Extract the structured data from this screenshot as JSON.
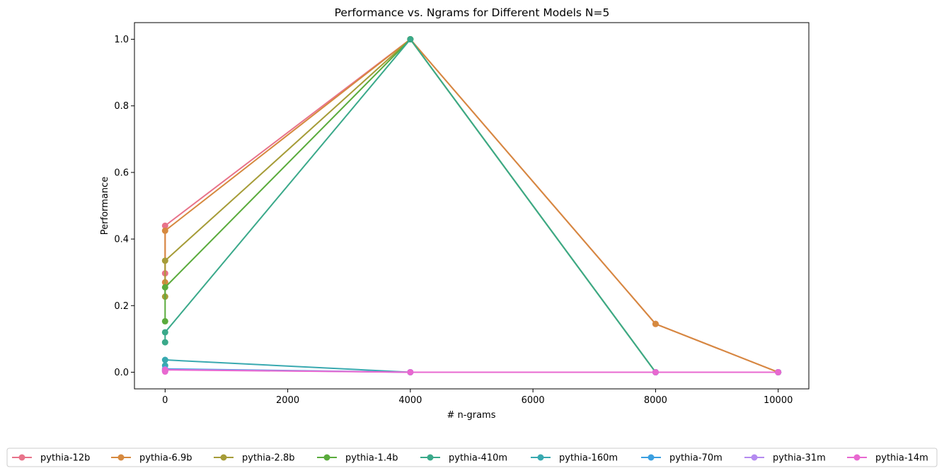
{
  "chart_data": {
    "type": "line",
    "title": "Performance vs. Ngrams for Different Models N=5",
    "xlabel": "# n-grams",
    "ylabel": "Performance",
    "xlim": [
      -500,
      10500
    ],
    "ylim": [
      -0.05,
      1.05
    ],
    "xticks": [
      0,
      2000,
      4000,
      6000,
      8000,
      10000
    ],
    "xtick_labels": [
      "0",
      "2000",
      "4000",
      "6000",
      "8000",
      "10000"
    ],
    "yticks": [
      0.0,
      0.2,
      0.4,
      0.6,
      0.8,
      1.0
    ],
    "ytick_labels": [
      "0.0",
      "0.2",
      "0.4",
      "0.6",
      "0.8",
      "1.0"
    ],
    "grid": false,
    "legend_position": "bottom",
    "series": [
      {
        "name": "pythia-12b",
        "color": "#e8738a",
        "points": [
          [
            0,
            0.297
          ],
          [
            0,
            0.44
          ],
          [
            4000,
            1.0
          ],
          [
            8000,
            0.145
          ],
          [
            10000,
            0.0
          ]
        ]
      },
      {
        "name": "pythia-6.9b",
        "color": "#d6893f",
        "points": [
          [
            0,
            0.27
          ],
          [
            0,
            0.425
          ],
          [
            4000,
            1.0
          ],
          [
            8000,
            0.145
          ],
          [
            10000,
            0.0
          ]
        ]
      },
      {
        "name": "pythia-2.8b",
        "color": "#a69c38",
        "points": [
          [
            0,
            0.227
          ],
          [
            0,
            0.335
          ],
          [
            4000,
            1.0
          ],
          [
            8000,
            0.0
          ],
          [
            10000,
            0.0
          ]
        ]
      },
      {
        "name": "pythia-1.4b",
        "color": "#5aab3c",
        "points": [
          [
            0,
            0.153
          ],
          [
            0,
            0.255
          ],
          [
            4000,
            1.0
          ],
          [
            8000,
            0.0
          ],
          [
            10000,
            0.0
          ]
        ]
      },
      {
        "name": "pythia-410m",
        "color": "#3aa98a",
        "points": [
          [
            0,
            0.09
          ],
          [
            0,
            0.12
          ],
          [
            4000,
            1.0
          ],
          [
            8000,
            0.0
          ],
          [
            10000,
            0.0
          ]
        ]
      },
      {
        "name": "pythia-160m",
        "color": "#38a9b0",
        "points": [
          [
            0,
            0.02
          ],
          [
            0,
            0.037
          ],
          [
            4000,
            0.0
          ],
          [
            8000,
            0.0
          ],
          [
            10000,
            0.0
          ]
        ]
      },
      {
        "name": "pythia-70m",
        "color": "#3a9fe0",
        "points": [
          [
            0,
            0.005
          ],
          [
            0,
            0.01
          ],
          [
            4000,
            0.0
          ],
          [
            8000,
            0.0
          ],
          [
            10000,
            0.0
          ]
        ]
      },
      {
        "name": "pythia-31m",
        "color": "#b48af0",
        "points": [
          [
            0,
            0.003
          ],
          [
            0,
            0.008
          ],
          [
            4000,
            0.0
          ],
          [
            8000,
            0.0
          ],
          [
            10000,
            0.0
          ]
        ]
      },
      {
        "name": "pythia-14m",
        "color": "#e868d0",
        "points": [
          [
            0,
            0.002
          ],
          [
            0,
            0.007
          ],
          [
            4000,
            0.0
          ],
          [
            8000,
            0.0
          ],
          [
            10000,
            0.0
          ]
        ]
      }
    ]
  }
}
